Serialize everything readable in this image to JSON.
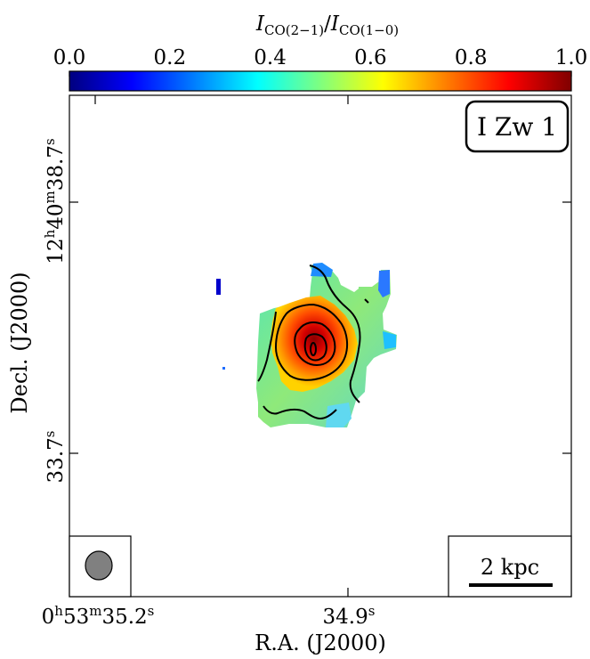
{
  "chart_data": {
    "type": "heatmap",
    "title": "",
    "colorbar": {
      "label": "I_CO(2-1)/I_CO(1-0)",
      "label_main_1": "I",
      "label_sub_1": "CO(2−1)",
      "label_slash": "/",
      "label_main_2": "I",
      "label_sub_2": "CO(1−0)",
      "range": [
        0.0,
        1.0
      ],
      "ticks": [
        "0.0",
        "0.2",
        "0.4",
        "0.6",
        "0.8",
        "1.0"
      ],
      "colormap": "jet",
      "position": "top"
    },
    "xlabel": "R.A. (J2000)",
    "ylabel": "Decl. (J2000)",
    "x_ticks": [
      {
        "base": "0",
        "sup1": "h",
        "mid": "53",
        "sup2": "m",
        "rest": "35.2",
        "sup3": "s"
      },
      {
        "base": "",
        "sup1": "",
        "mid": "",
        "sup2": "",
        "rest": "34.9",
        "sup3": "s"
      }
    ],
    "y_ticks": [
      {
        "base": "33.7",
        "sup1": "s",
        "mid": "",
        "sup2": "",
        "rest": "",
        "sup3": ""
      },
      {
        "base": "12",
        "sup1": "h",
        "mid": "40",
        "sup2": "m",
        "rest": "38.7",
        "sup3": "s"
      }
    ],
    "object_label": "I Zw 1",
    "scale_bar_label": "2 kpc",
    "beam": "filled ellipse, lower-left",
    "grid": false,
    "map_summary": {
      "peak_ratio": 0.95,
      "peak_region": "center of emission",
      "edge_ratio_range": [
        0.4,
        0.55
      ],
      "contour_levels": [
        0.5,
        0.6,
        0.7,
        0.8,
        0.9
      ]
    }
  },
  "colors": {
    "jet": [
      "#00007f",
      "#0000ff",
      "#007fff",
      "#00ffff",
      "#7fff7f",
      "#ffff00",
      "#ff7f00",
      "#ff0000",
      "#7f0000"
    ],
    "beam_fill": "#808080",
    "axis": "#000000"
  }
}
